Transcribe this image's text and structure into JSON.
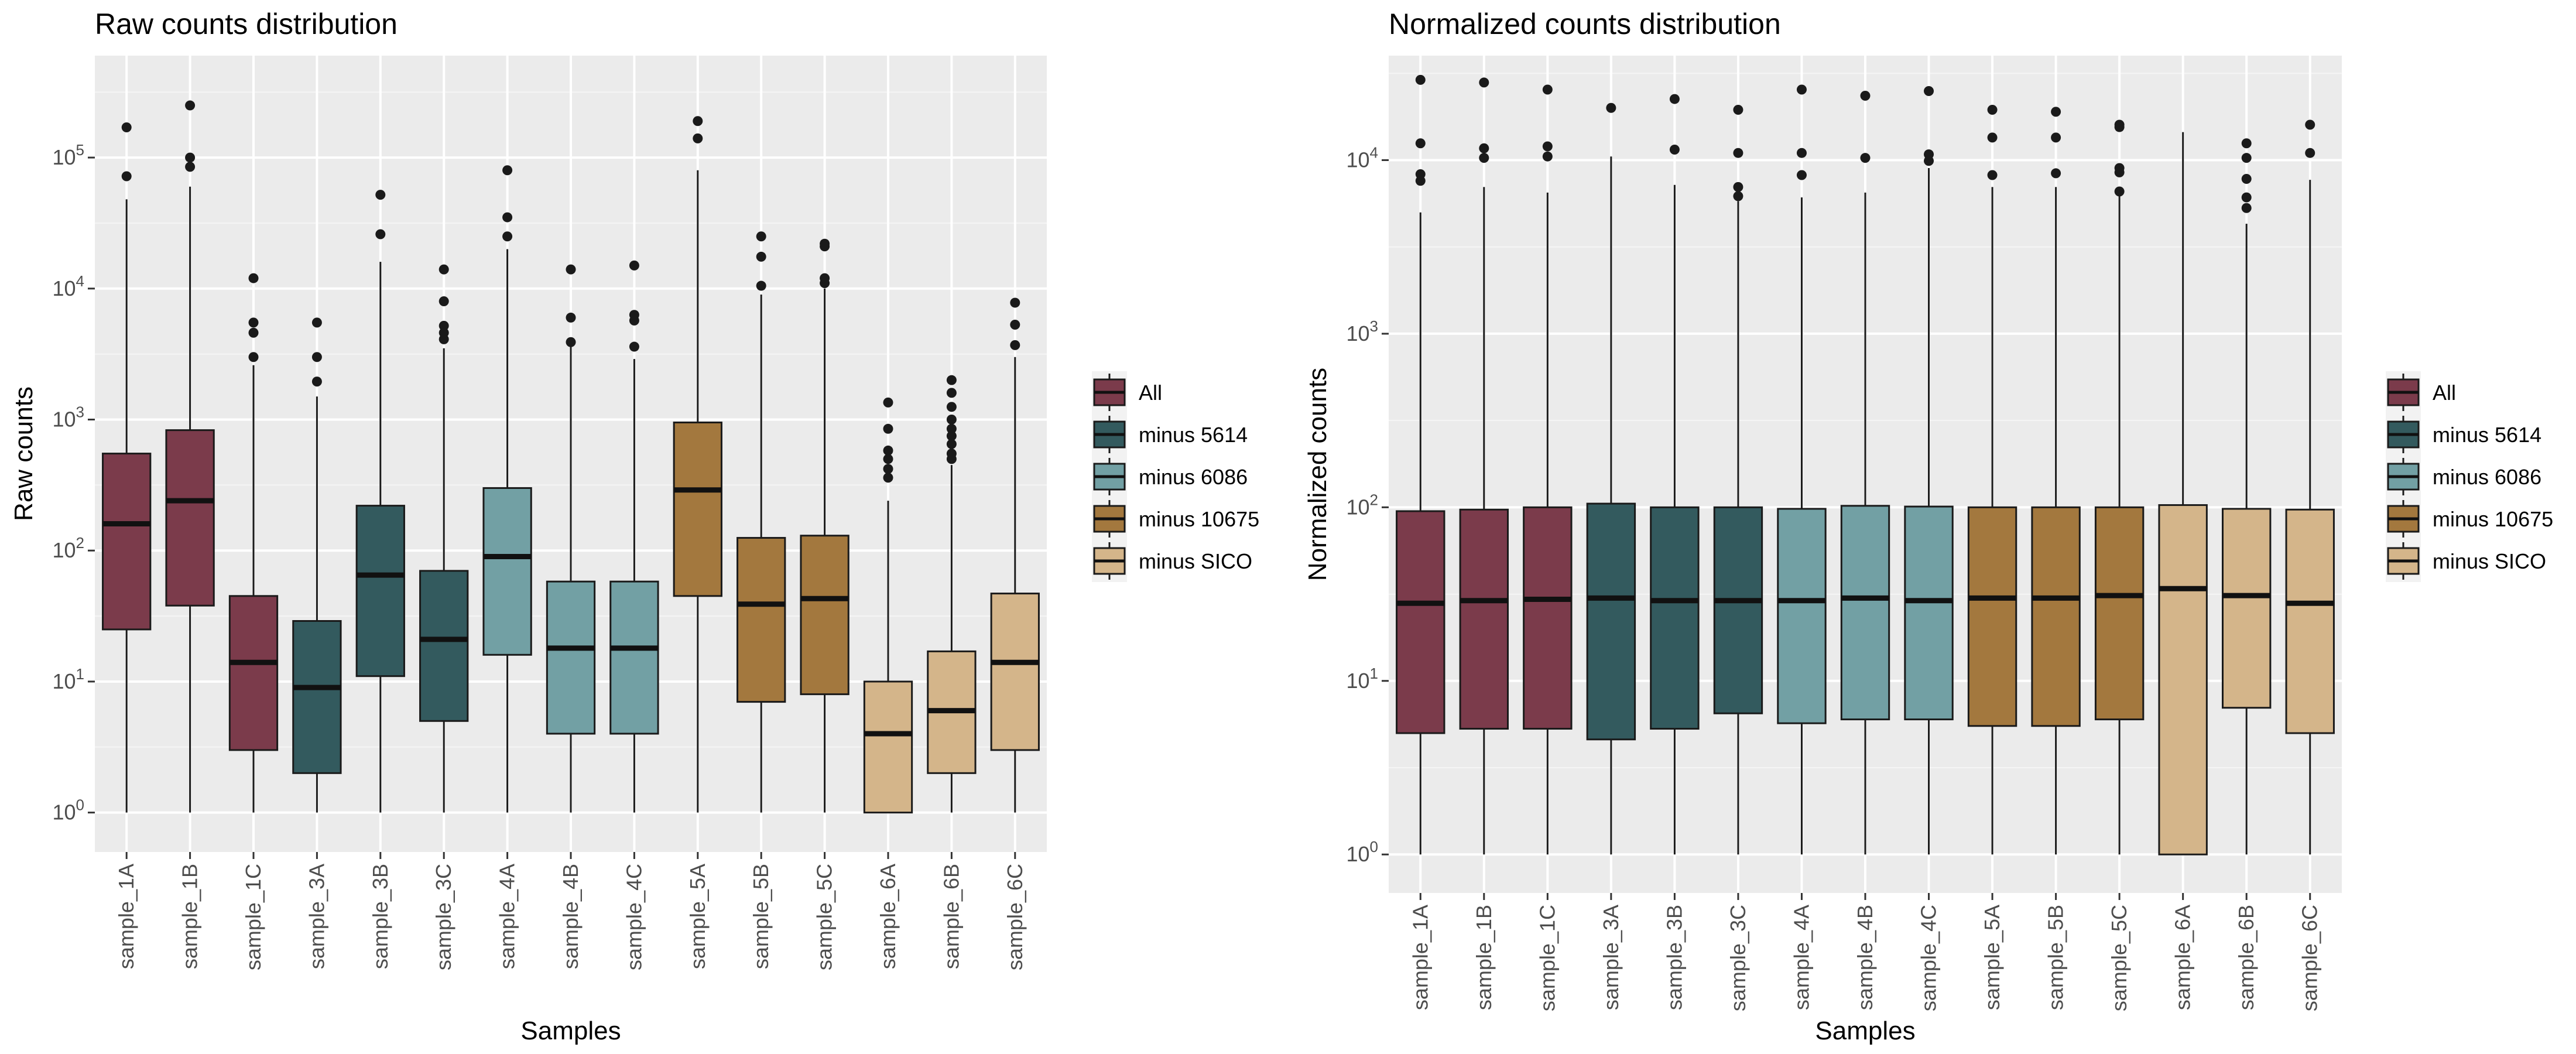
{
  "legend": {
    "items": [
      {
        "label": "All",
        "color": "#7B3B4B"
      },
      {
        "label": "minus 5614",
        "color": "#335A5E"
      },
      {
        "label": "minus 6086",
        "color": "#72A0A4"
      },
      {
        "label": "minus 10675",
        "color": "#A3783E"
      },
      {
        "label": "minus SICO",
        "color": "#D4B58A"
      }
    ]
  },
  "chart_data": [
    {
      "type": "box",
      "title": "Raw counts distribution",
      "xlabel": "Samples",
      "ylabel": "Raw counts",
      "y_scale": "log10",
      "ylim": [
        0.5,
        600000
      ],
      "y_ticks": [
        {
          "value": 1,
          "label": "10^0"
        },
        {
          "value": 10,
          "label": "10^1"
        },
        {
          "value": 100,
          "label": "10^2"
        },
        {
          "value": 1000,
          "label": "10^3"
        },
        {
          "value": 10000,
          "label": "10^4"
        },
        {
          "value": 100000,
          "label": "10^5"
        }
      ],
      "grid": true,
      "legend_position": "right",
      "categories": [
        "sample_1A",
        "sample_1B",
        "sample_1C",
        "sample_3A",
        "sample_3B",
        "sample_3C",
        "sample_4A",
        "sample_4B",
        "sample_4C",
        "sample_5A",
        "sample_5B",
        "sample_5C",
        "sample_6A",
        "sample_6B",
        "sample_6C"
      ],
      "groups": [
        "All",
        "All",
        "All",
        "minus 5614",
        "minus 5614",
        "minus 5614",
        "minus 6086",
        "minus 6086",
        "minus 6086",
        "minus 10675",
        "minus 10675",
        "minus 10675",
        "minus SICO",
        "minus SICO",
        "minus SICO"
      ],
      "boxes": [
        {
          "min": 1,
          "q1": 25,
          "median": 160,
          "q3": 550,
          "max": 48000,
          "outliers": [
            72000,
            170000
          ]
        },
        {
          "min": 1,
          "q1": 38,
          "median": 240,
          "q3": 830,
          "max": 60000,
          "outliers": [
            85000,
            100000,
            250000
          ]
        },
        {
          "min": 1,
          "q1": 3,
          "median": 14,
          "q3": 45,
          "max": 2600,
          "outliers": [
            3000,
            4600,
            5500,
            12000
          ]
        },
        {
          "min": 1,
          "q1": 2,
          "median": 9,
          "q3": 29,
          "max": 1500,
          "outliers": [
            1950,
            3000,
            5500
          ]
        },
        {
          "min": 1,
          "q1": 11,
          "median": 65,
          "q3": 220,
          "max": 16000,
          "outliers": [
            26000,
            52000
          ]
        },
        {
          "min": 1,
          "q1": 5,
          "median": 21,
          "q3": 70,
          "max": 3500,
          "outliers": [
            4100,
            4600,
            5200,
            8000,
            14000
          ]
        },
        {
          "min": 1,
          "q1": 16,
          "median": 90,
          "q3": 300,
          "max": 20000,
          "outliers": [
            25000,
            35000,
            80000
          ]
        },
        {
          "min": 1,
          "q1": 4,
          "median": 18,
          "q3": 58,
          "max": 3600,
          "outliers": [
            3900,
            6000,
            14000
          ]
        },
        {
          "min": 1,
          "q1": 4,
          "median": 18,
          "q3": 58,
          "max": 2900,
          "outliers": [
            3600,
            5700,
            6300,
            15000
          ]
        },
        {
          "min": 1,
          "q1": 45,
          "median": 290,
          "q3": 950,
          "max": 80000,
          "outliers": [
            140000,
            190000
          ]
        },
        {
          "min": 1,
          "q1": 7,
          "median": 39,
          "q3": 125,
          "max": 9000,
          "outliers": [
            10500,
            17500,
            25000
          ]
        },
        {
          "min": 1,
          "q1": 8,
          "median": 43,
          "q3": 130,
          "max": 10000,
          "outliers": [
            11000,
            12000,
            21000,
            22000
          ]
        },
        {
          "min": 1,
          "q1": 1,
          "median": 4,
          "q3": 10,
          "max": 240,
          "outliers": [
            360,
            420,
            500,
            580,
            850,
            1350
          ]
        },
        {
          "min": 1,
          "q1": 2,
          "median": 6,
          "q3": 17,
          "max": 450,
          "outliers": [
            500,
            550,
            650,
            750,
            850,
            1000,
            1250,
            1600,
            2000
          ]
        },
        {
          "min": 1,
          "q1": 3,
          "median": 14,
          "q3": 47,
          "max": 3000,
          "outliers": [
            3700,
            5300,
            7800
          ]
        }
      ]
    },
    {
      "type": "box",
      "title": "Normalized counts distribution",
      "xlabel": "Samples",
      "ylabel": "Normalized counts",
      "y_scale": "log10",
      "ylim": [
        0.6,
        40000
      ],
      "y_ticks": [
        {
          "value": 1,
          "label": "10^0"
        },
        {
          "value": 10,
          "label": "10^1"
        },
        {
          "value": 100,
          "label": "10^2"
        },
        {
          "value": 1000,
          "label": "10^3"
        },
        {
          "value": 10000,
          "label": "10^4"
        }
      ],
      "grid": true,
      "legend_position": "right",
      "categories": [
        "sample_1A",
        "sample_1B",
        "sample_1C",
        "sample_3A",
        "sample_3B",
        "sample_3C",
        "sample_4A",
        "sample_4B",
        "sample_4C",
        "sample_5A",
        "sample_5B",
        "sample_5C",
        "sample_6A",
        "sample_6B",
        "sample_6C"
      ],
      "groups": [
        "All",
        "All",
        "All",
        "minus 5614",
        "minus 5614",
        "minus 5614",
        "minus 6086",
        "minus 6086",
        "minus 6086",
        "minus 10675",
        "minus 10675",
        "minus 10675",
        "minus SICO",
        "minus SICO",
        "minus SICO"
      ],
      "boxes": [
        {
          "min": 1,
          "q1": 5,
          "median": 28,
          "q3": 95,
          "max": 5000,
          "outliers": [
            7600,
            8300,
            12500,
            29000
          ]
        },
        {
          "min": 1,
          "q1": 5.3,
          "median": 29,
          "q3": 97,
          "max": 7000,
          "outliers": [
            10300,
            11700,
            28000
          ]
        },
        {
          "min": 1,
          "q1": 5.3,
          "median": 29.5,
          "q3": 100,
          "max": 6500,
          "outliers": [
            10500,
            12000,
            25500
          ]
        },
        {
          "min": 1,
          "q1": 4.6,
          "median": 30,
          "q3": 105,
          "max": 10500,
          "outliers": [
            20000
          ]
        },
        {
          "min": 1,
          "q1": 5.3,
          "median": 29,
          "q3": 100,
          "max": 7200,
          "outliers": [
            11500,
            22500
          ]
        },
        {
          "min": 1,
          "q1": 6.5,
          "median": 29,
          "q3": 100,
          "max": 5800,
          "outliers": [
            6200,
            7000,
            11000,
            19500
          ]
        },
        {
          "min": 1,
          "q1": 5.7,
          "median": 29,
          "q3": 98,
          "max": 6100,
          "outliers": [
            8200,
            11000,
            25500
          ]
        },
        {
          "min": 1,
          "q1": 6,
          "median": 30,
          "q3": 102,
          "max": 6500,
          "outliers": [
            10300,
            23500
          ]
        },
        {
          "min": 1,
          "q1": 6,
          "median": 29,
          "q3": 101,
          "max": 9000,
          "outliers": [
            9900,
            10800,
            25000
          ]
        },
        {
          "min": 1,
          "q1": 5.5,
          "median": 30,
          "q3": 100,
          "max": 7000,
          "outliers": [
            8200,
            13500,
            19500
          ]
        },
        {
          "min": 1,
          "q1": 5.5,
          "median": 30,
          "q3": 100,
          "max": 7000,
          "outliers": [
            8400,
            13500,
            19000
          ]
        },
        {
          "min": 1,
          "q1": 6,
          "median": 31,
          "q3": 100,
          "max": 6200,
          "outliers": [
            6600,
            8500,
            9000,
            15500,
            16000
          ]
        },
        {
          "min": 1,
          "q1": 1,
          "median": 34,
          "q3": 103,
          "max": 14500,
          "outliers": []
        },
        {
          "min": 1,
          "q1": 7,
          "median": 31,
          "q3": 98,
          "max": 4300,
          "outliers": [
            5300,
            6100,
            7800,
            10300,
            12500
          ]
        },
        {
          "min": 1,
          "q1": 5,
          "median": 28,
          "q3": 97,
          "max": 7700,
          "outliers": [
            11000,
            16000
          ]
        }
      ]
    }
  ]
}
